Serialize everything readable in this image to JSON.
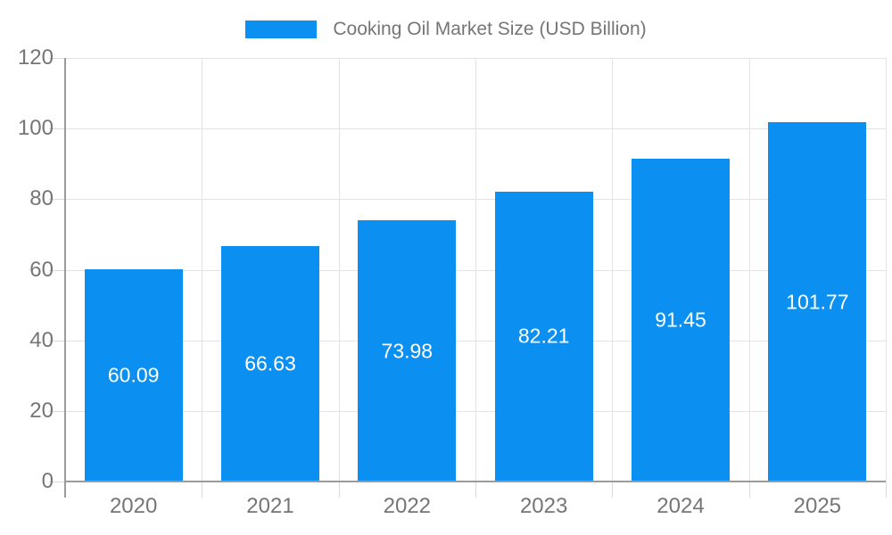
{
  "legend": {
    "label": "Cooking Oil Market Size (USD Billion)"
  },
  "chart_data": {
    "type": "bar",
    "title": "Cooking Oil Market Size (USD Billion)",
    "categories": [
      "2020",
      "2021",
      "2022",
      "2023",
      "2024",
      "2025"
    ],
    "values": [
      60.09,
      66.63,
      73.98,
      82.21,
      91.45,
      101.77
    ],
    "value_labels": [
      "60.09",
      "66.63",
      "73.98",
      "82.21",
      "91.45",
      "101.77"
    ],
    "series_name": "Cooking Oil Market Size (USD Billion)",
    "xlabel": "",
    "ylabel": "",
    "ylim": [
      0,
      120
    ],
    "yticks": [
      0,
      20,
      40,
      60,
      80,
      100,
      120
    ],
    "grid": true,
    "legend_position": "top-center",
    "colors": {
      "bar": "#0b90f2",
      "value_label": "#ffffff",
      "axis": "#9b9b9b",
      "gridline": "#e3e3e3",
      "tick": "#d9d9d9",
      "text": "#757575"
    }
  }
}
